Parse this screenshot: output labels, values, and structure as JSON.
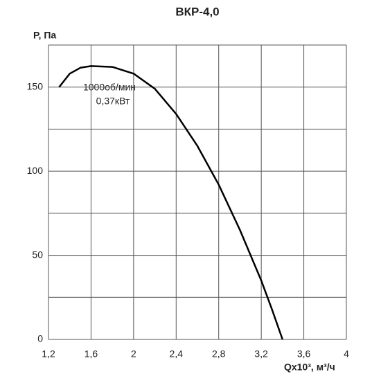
{
  "chart_data": {
    "type": "line",
    "title": "ВКР-4,0",
    "y_label": "P, Па",
    "x_label": "Qx10³, м³/ч",
    "annotations": [
      "1000об/мин",
      "0,37кВт"
    ],
    "x": [
      1.3,
      1.4,
      1.5,
      1.6,
      1.8,
      2.0,
      2.2,
      2.4,
      2.6,
      2.8,
      3.0,
      3.2,
      3.3,
      3.4
    ],
    "series": [
      {
        "color": "#000000",
        "values": [
          150,
          158,
          161.5,
          162.5,
          162,
          158,
          149,
          134,
          115,
          92,
          65,
          35,
          18,
          0
        ]
      }
    ],
    "xlim": [
      1.2,
      4.0
    ],
    "xticks": [
      {
        "value": 1.2,
        "label": "1,2"
      },
      {
        "value": 1.6,
        "label": "1,6"
      },
      2,
      {
        "value": 2.4,
        "label": "2,4"
      },
      {
        "value": 2.8,
        "label": "2,8"
      },
      {
        "value": 3.2,
        "label": "3,2"
      },
      {
        "value": 3.6,
        "label": "3,6"
      },
      4
    ],
    "ylim": [
      0,
      175
    ],
    "yticks": [
      0,
      50,
      100,
      150
    ],
    "ygrid": [
      0,
      25,
      50,
      75,
      100,
      125,
      150,
      175
    ],
    "grid": true
  }
}
